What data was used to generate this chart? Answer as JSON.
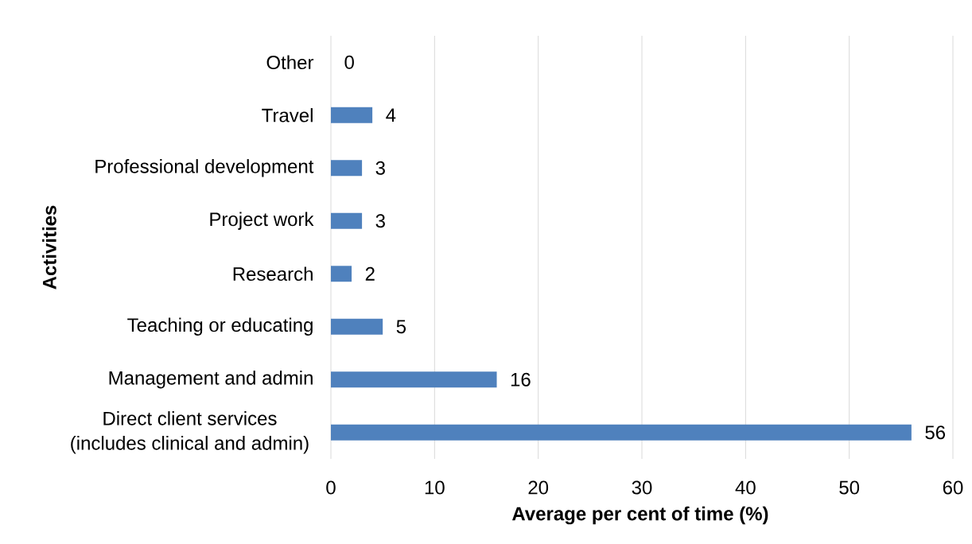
{
  "chart_data": {
    "type": "bar",
    "orientation": "horizontal",
    "xlabel": "Average per cent of time (%)",
    "ylabel": "Activities",
    "categories": [
      "Other",
      "Travel",
      "Professional development",
      "Project work",
      "Research",
      "Teaching or educating",
      "Management and admin",
      "Direct client services (includes clinical and admin)"
    ],
    "values": [
      0,
      4,
      3,
      3,
      2,
      5,
      16,
      56
    ],
    "color": "#4f81bd",
    "xlim": [
      0,
      60
    ],
    "xticks": [
      0,
      10,
      20,
      30,
      40,
      50,
      60
    ],
    "grid": "x",
    "data_labels": true
  }
}
